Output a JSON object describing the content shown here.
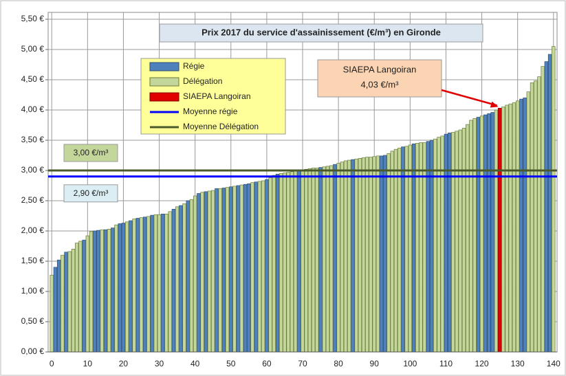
{
  "chart_data": {
    "type": "bar",
    "title": "Prix 2017 du service d'assainissement (€/m³) en Gironde",
    "x": [
      0,
      1,
      2,
      3,
      4,
      5,
      6,
      7,
      8,
      9,
      10,
      11,
      12,
      13,
      14,
      15,
      16,
      17,
      18,
      19,
      20,
      21,
      22,
      23,
      24,
      25,
      26,
      27,
      28,
      29,
      30,
      31,
      32,
      33,
      34,
      35,
      36,
      37,
      38,
      39,
      40,
      41,
      42,
      43,
      44,
      45,
      46,
      47,
      48,
      49,
      50,
      51,
      52,
      53,
      54,
      55,
      56,
      57,
      58,
      59,
      60,
      61,
      62,
      63,
      64,
      65,
      66,
      67,
      68,
      69,
      70,
      71,
      72,
      73,
      74,
      75,
      76,
      77,
      78,
      79,
      80,
      81,
      82,
      83,
      84,
      85,
      86,
      87,
      88,
      89,
      90,
      91,
      92,
      93,
      94,
      95,
      96,
      97,
      98,
      99,
      100,
      101,
      102,
      103,
      104,
      105,
      106,
      107,
      108,
      109,
      110,
      111,
      112,
      113,
      114,
      115,
      116,
      117,
      118,
      119,
      120,
      121,
      122,
      123,
      124,
      125,
      126,
      127,
      128,
      129,
      130,
      131,
      132,
      133,
      134,
      135,
      136,
      137,
      138,
      139,
      140
    ],
    "series": [
      {
        "name": "Régie",
        "color": "#4f81bd",
        "values": [
          null,
          1.4,
          1.52,
          null,
          1.65,
          null,
          null,
          null,
          null,
          1.85,
          null,
          null,
          2.0,
          2.01,
          null,
          2.02,
          null,
          2.05,
          null,
          2.12,
          2.13,
          null,
          2.17,
          null,
          2.21,
          null,
          2.23,
          null,
          2.26,
          null,
          null,
          2.28,
          null,
          null,
          2.36,
          null,
          2.42,
          null,
          2.5,
          null,
          null,
          2.62,
          null,
          2.65,
          null,
          null,
          2.7,
          null,
          2.71,
          null,
          2.73,
          null,
          2.75,
          null,
          2.77,
          2.78,
          null,
          2.81,
          null,
          null,
          2.85,
          null,
          null,
          2.94,
          null,
          null,
          null,
          null,
          null,
          3.0,
          null,
          null,
          null,
          null,
          null,
          3.05,
          null,
          null,
          null,
          3.1,
          null,
          null,
          null,
          null,
          3.18,
          null,
          null,
          null,
          null,
          null,
          null,
          null,
          3.24,
          3.25,
          null,
          null,
          null,
          null,
          3.39,
          null,
          null,
          3.44,
          null,
          null,
          null,
          3.48,
          3.5,
          null,
          null,
          null,
          3.6,
          3.62,
          null,
          null,
          null,
          null,
          null,
          null,
          null,
          3.88,
          null,
          3.92,
          3.94,
          3.96,
          null,
          null,
          null,
          null,
          null,
          null,
          null,
          4.18,
          4.2,
          null,
          null,
          null,
          null,
          null,
          4.8,
          4.92,
          null
        ]
      },
      {
        "name": "Délégation",
        "color": "#c4d79b",
        "values": [
          1.27,
          null,
          null,
          1.6,
          null,
          1.66,
          1.7,
          1.8,
          1.83,
          null,
          1.92,
          1.99,
          null,
          null,
          2.02,
          null,
          2.03,
          null,
          2.1,
          null,
          null,
          2.15,
          null,
          2.2,
          null,
          2.22,
          null,
          2.24,
          null,
          2.27,
          2.27,
          null,
          2.28,
          2.32,
          null,
          2.4,
          null,
          2.45,
          null,
          2.52,
          2.58,
          null,
          2.64,
          null,
          2.66,
          2.67,
          null,
          2.7,
          null,
          2.72,
          null,
          2.74,
          null,
          2.76,
          null,
          null,
          2.8,
          null,
          2.82,
          2.83,
          null,
          2.88,
          2.92,
          null,
          2.95,
          2.96,
          2.97,
          2.98,
          2.99,
          null,
          3.01,
          3.02,
          3.03,
          3.04,
          3.04,
          null,
          3.06,
          3.07,
          3.08,
          null,
          3.12,
          3.14,
          3.16,
          3.17,
          null,
          3.19,
          3.2,
          3.21,
          3.22,
          3.22,
          3.23,
          3.24,
          null,
          null,
          3.28,
          3.32,
          3.35,
          3.37,
          null,
          3.4,
          3.42,
          null,
          3.45,
          3.46,
          3.46,
          null,
          null,
          3.52,
          3.55,
          3.57,
          null,
          null,
          3.63,
          3.65,
          3.67,
          3.7,
          3.76,
          3.83,
          3.86,
          null,
          3.9,
          null,
          null,
          null,
          4.0,
          null,
          4.05,
          4.08,
          4.1,
          4.12,
          4.15,
          null,
          null,
          4.3,
          4.45,
          4.48,
          4.55,
          4.72,
          null,
          null,
          5.05
        ]
      },
      {
        "name": "SIAEPA Langoiran",
        "color": "#e00000",
        "values": [
          null,
          null,
          null,
          null,
          null,
          null,
          null,
          null,
          null,
          null,
          null,
          null,
          null,
          null,
          null,
          null,
          null,
          null,
          null,
          null,
          null,
          null,
          null,
          null,
          null,
          null,
          null,
          null,
          null,
          null,
          null,
          null,
          null,
          null,
          null,
          null,
          null,
          null,
          null,
          null,
          null,
          null,
          null,
          null,
          null,
          null,
          null,
          null,
          null,
          null,
          null,
          null,
          null,
          null,
          null,
          null,
          null,
          null,
          null,
          null,
          null,
          null,
          null,
          null,
          null,
          null,
          null,
          null,
          null,
          null,
          null,
          null,
          null,
          null,
          null,
          null,
          null,
          null,
          null,
          null,
          null,
          null,
          null,
          null,
          null,
          null,
          null,
          null,
          null,
          null,
          null,
          null,
          null,
          null,
          null,
          null,
          null,
          null,
          null,
          null,
          null,
          null,
          null,
          null,
          null,
          null,
          null,
          null,
          null,
          null,
          null,
          null,
          null,
          null,
          null,
          null,
          null,
          null,
          null,
          null,
          null,
          null,
          null,
          null,
          null,
          4.03,
          null,
          null,
          null,
          null,
          null,
          null,
          null,
          null,
          null,
          null,
          null,
          null,
          null,
          null,
          null
        ]
      }
    ],
    "lines": [
      {
        "name": "Moyenne régie",
        "color": "#0000ff",
        "value": 2.9,
        "label": "2,90 €/m³"
      },
      {
        "name": "Moyenne Délégation",
        "color": "#4a5a2a",
        "value": 3.0,
        "label": "3,00 €/m³"
      }
    ],
    "annotation": [
      "SIAEPA Langoiran",
      "4,03 €/m³"
    ],
    "xlim": [
      -1,
      141
    ],
    "xticks": [
      0,
      10,
      20,
      30,
      40,
      50,
      60,
      70,
      80,
      90,
      100,
      110,
      120,
      130,
      140
    ],
    "ylim": [
      0,
      5.5
    ],
    "yticks": [
      {
        "value": 0,
        "label": "0,00 €"
      },
      {
        "value": 0.5,
        "label": "0,50 €"
      },
      {
        "value": 1,
        "label": "1,00 €"
      },
      {
        "value": 1.5,
        "label": "1,50 €"
      },
      {
        "value": 2,
        "label": "2,00 €"
      },
      {
        "value": 2.5,
        "label": "2,50 €"
      },
      {
        "value": 3,
        "label": "3,00 €"
      },
      {
        "value": 3.5,
        "label": "3,50 €"
      },
      {
        "value": 4,
        "label": "4,00 €"
      },
      {
        "value": 4.5,
        "label": "4,50 €"
      },
      {
        "value": 5,
        "label": "5,00 €"
      },
      {
        "value": 5.5,
        "label": "5,50 €"
      }
    ],
    "grid": true
  }
}
